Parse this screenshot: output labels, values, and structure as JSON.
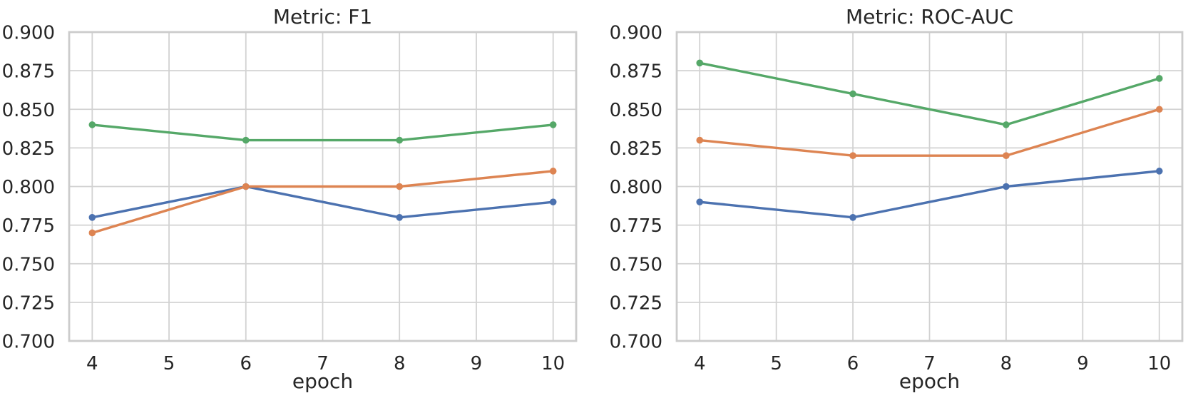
{
  "style": {
    "background": "#ffffff",
    "grid_color": "#d2d2d2",
    "spine_color": "#cccccc",
    "text_color": "#262626",
    "series_colors": {
      "blue": "#4C72B0",
      "orange": "#DD8452",
      "green": "#55A868"
    }
  },
  "chart_data": [
    {
      "type": "line",
      "title": "Metric: F1",
      "xlabel": "epoch",
      "ylabel": "",
      "x": [
        4,
        6,
        8,
        10
      ],
      "xlim": [
        3.7,
        10.3
      ],
      "ylim": [
        0.7,
        0.9
      ],
      "xticks": [
        4,
        5,
        6,
        7,
        8,
        9,
        10
      ],
      "yticks": [
        0.7,
        0.725,
        0.75,
        0.775,
        0.8,
        0.825,
        0.85,
        0.875,
        0.9
      ],
      "ytick_decimals": 3,
      "grid": true,
      "legend": "none",
      "marker": "circle",
      "series": [
        {
          "name": "series-blue",
          "color": "#4C72B0",
          "values": [
            0.78,
            0.8,
            0.78,
            0.79
          ]
        },
        {
          "name": "series-orange",
          "color": "#DD8452",
          "values": [
            0.77,
            0.8,
            0.8,
            0.81
          ]
        },
        {
          "name": "series-green",
          "color": "#55A868",
          "values": [
            0.84,
            0.83,
            0.83,
            0.84
          ]
        }
      ]
    },
    {
      "type": "line",
      "title": "Metric: ROC-AUC",
      "xlabel": "epoch",
      "ylabel": "",
      "x": [
        4,
        6,
        8,
        10
      ],
      "xlim": [
        3.7,
        10.3
      ],
      "ylim": [
        0.7,
        0.9
      ],
      "xticks": [
        4,
        5,
        6,
        7,
        8,
        9,
        10
      ],
      "yticks": [
        0.7,
        0.725,
        0.75,
        0.775,
        0.8,
        0.825,
        0.85,
        0.875,
        0.9
      ],
      "ytick_decimals": 3,
      "grid": true,
      "legend": "none",
      "marker": "circle",
      "series": [
        {
          "name": "series-blue",
          "color": "#4C72B0",
          "values": [
            0.79,
            0.78,
            0.8,
            0.81
          ]
        },
        {
          "name": "series-orange",
          "color": "#DD8452",
          "values": [
            0.83,
            0.82,
            0.82,
            0.85
          ]
        },
        {
          "name": "series-green",
          "color": "#55A868",
          "values": [
            0.88,
            0.86,
            0.84,
            0.87
          ]
        }
      ]
    }
  ]
}
